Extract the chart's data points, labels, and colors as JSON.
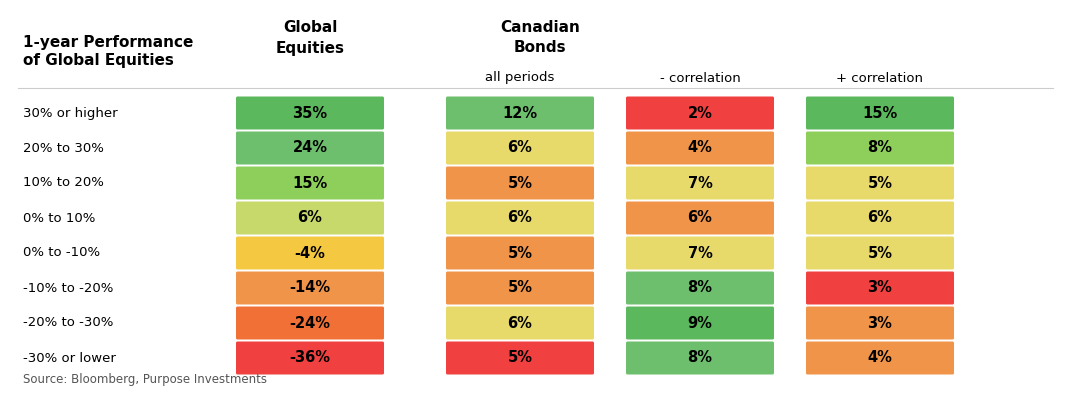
{
  "row_labels": [
    "30% or higher",
    "20% to 30%",
    "10% to 20%",
    "0% to 10%",
    "0% to -10%",
    "-10% to -20%",
    "-20% to -30%",
    "-30% or lower"
  ],
  "global_equities": {
    "values": [
      "35%",
      "24%",
      "15%",
      "6%",
      "-4%",
      "-14%",
      "-24%",
      "-36%"
    ],
    "colors": [
      "#5cb85c",
      "#6dbf6d",
      "#8dcf5a",
      "#c8d96b",
      "#f5c842",
      "#f0944a",
      "#f07035",
      "#f04040"
    ]
  },
  "all_periods": {
    "values": [
      "12%",
      "6%",
      "5%",
      "6%",
      "5%",
      "5%",
      "6%",
      "5%"
    ],
    "colors": [
      "#6dbf6d",
      "#e8d96b",
      "#f0944a",
      "#e8d96b",
      "#f0944a",
      "#f0944a",
      "#e8d96b",
      "#f04040"
    ]
  },
  "neg_correlation": {
    "values": [
      "2%",
      "4%",
      "7%",
      "6%",
      "7%",
      "8%",
      "9%",
      "8%"
    ],
    "colors": [
      "#f04040",
      "#f0944a",
      "#e8d96b",
      "#f0944a",
      "#e8d96b",
      "#6dbf6d",
      "#5cb85c",
      "#6dbf6d"
    ]
  },
  "pos_correlation": {
    "values": [
      "15%",
      "8%",
      "5%",
      "6%",
      "5%",
      "3%",
      "3%",
      "4%"
    ],
    "colors": [
      "#5cb85c",
      "#8dcf5a",
      "#e8d96b",
      "#e8d96b",
      "#e8d96b",
      "#f04040",
      "#f0944a",
      "#f0944a"
    ]
  },
  "background_color": "#ffffff",
  "source_text": "Source: Bloomberg, Purpose Investments",
  "figsize": [
    10.83,
    3.97
  ],
  "dpi": 100
}
